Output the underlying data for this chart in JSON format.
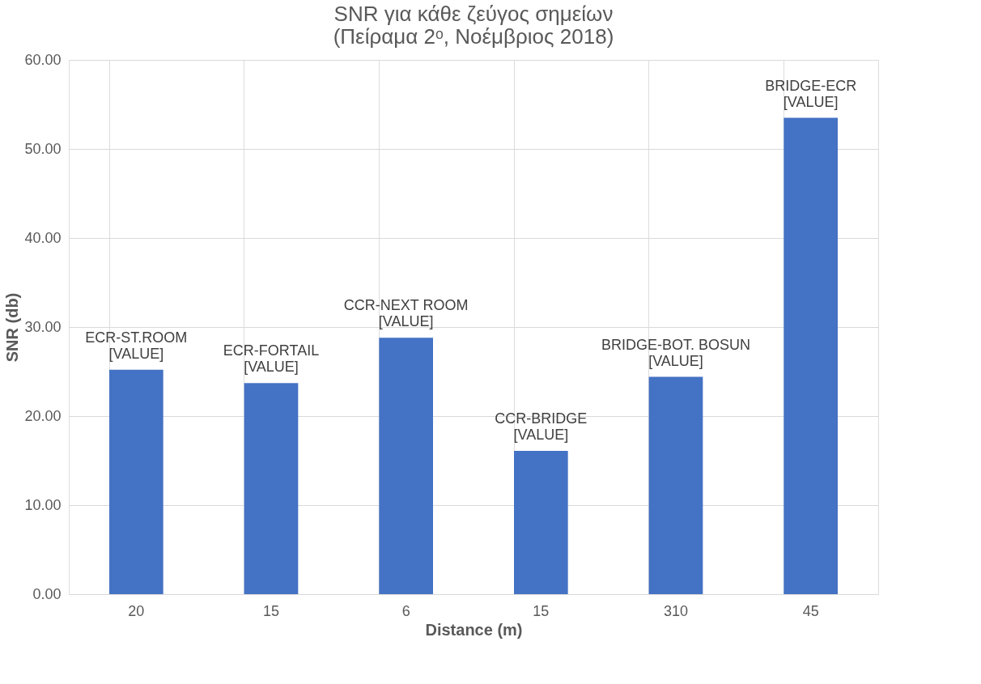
{
  "chart_data": {
    "type": "bar",
    "title": [
      "SNR για κάθε ζεύγος σημείων",
      "(Πείραμα 2ᵒ, Νοέμβριος  2018)"
    ],
    "xlabel": "Distance (m)",
    "ylabel": "SNR (db)",
    "categories": [
      "20",
      "15",
      "6",
      "15",
      "310",
      "45"
    ],
    "values": [
      25.2,
      23.7,
      28.8,
      16.1,
      24.4,
      53.5
    ],
    "color": "#4472c4",
    "ylim": [
      0,
      60
    ],
    "yticks": [
      {
        "value": 0,
        "label": "0.00"
      },
      {
        "value": 10,
        "label": "10.00"
      },
      {
        "value": 20,
        "label": "20.00"
      },
      {
        "value": 30,
        "label": "30.00"
      },
      {
        "value": 40,
        "label": "40.00"
      },
      {
        "value": 50,
        "label": "50.00"
      },
      {
        "value": 60,
        "label": "60.00"
      }
    ],
    "value_labels": [
      "ECR-ST.ROOM\n[VALUE]",
      "ECR-FORTAIL\n[VALUE]",
      "CCR-NEXT ROOM\n[VALUE]",
      "CCR-BRIDGE\n[VALUE]",
      "BRIDGE-BOT. BOSUN\n[VALUE]",
      "BRIDGE-ECR\n[VALUE]"
    ],
    "grid": true
  }
}
